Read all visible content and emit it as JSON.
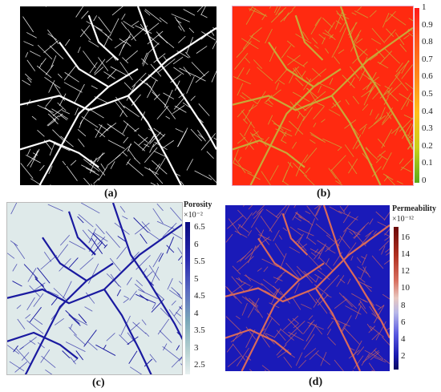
{
  "panels": {
    "a": {
      "label": "(a)"
    },
    "b": {
      "label": "(b)",
      "colorbar": {
        "ticks": [
          "1",
          "0.9",
          "0.8",
          "0.7",
          "0.6",
          "0.5",
          "0.4",
          "0.3",
          "0.2",
          "0.1",
          "0"
        ]
      }
    },
    "c": {
      "label": "(c)",
      "colorbar": {
        "title": "Porosity",
        "exponent": "×10⁻²",
        "ticks": [
          "6.5",
          "6",
          "5.5",
          "5",
          "4.5",
          "4",
          "3.5",
          "3",
          "2.5"
        ]
      }
    },
    "d": {
      "label": "(d)",
      "colorbar": {
        "title": "Permeability",
        "exponent": "×10⁻¹²",
        "ticks": [
          "16",
          "14",
          "12",
          "10",
          "8",
          "6",
          "4",
          "2"
        ]
      }
    }
  },
  "colors": {
    "a_bg": "#000000",
    "a_frac": "#ffffff",
    "b_bg": "#ff2a10",
    "b_frac": "#c8a838",
    "c_bg": "#dfeaea",
    "c_frac": "#1a1aa0",
    "d_bg": "#1a1ab8",
    "d_frac": "#d86a5a"
  }
}
